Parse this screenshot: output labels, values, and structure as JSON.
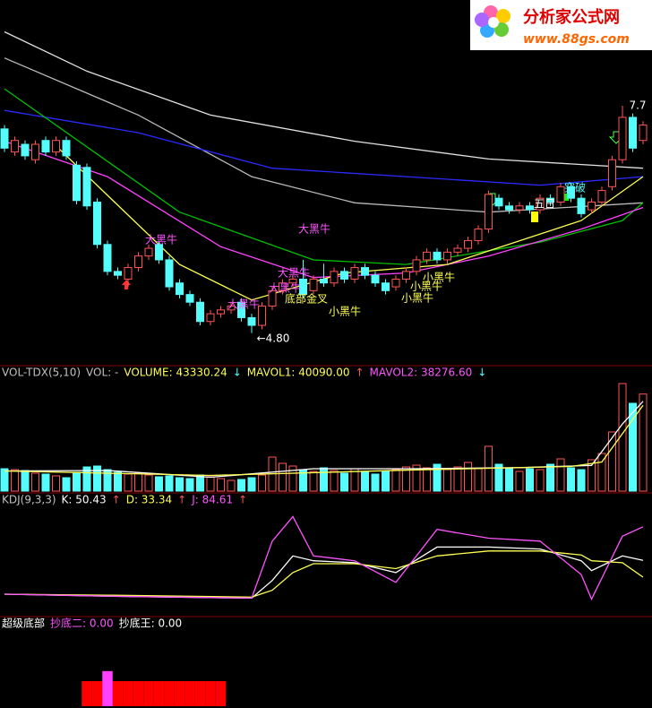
{
  "logo": {
    "name": "分析家公式网",
    "url": "www.88gs.com"
  },
  "chart_data": [
    {
      "type": "candlestick",
      "open": [
        7.45,
        7.15,
        7.25,
        7.05,
        7.3,
        7.15,
        7.3,
        6.98,
        6.95,
        6.5,
        5.95,
        5.6,
        5.5,
        5.65,
        5.8,
        5.95,
        5.75,
        5.45,
        5.3,
        5.2,
        4.95,
        5.05,
        5.1,
        5.2,
        5.0,
        4.9,
        5.15,
        5.35,
        5.45,
        5.5,
        5.35,
        5.5,
        5.45,
        5.6,
        5.5,
        5.65,
        5.55,
        5.45,
        5.4,
        5.5,
        5.6,
        5.75,
        5.85,
        5.75,
        5.85,
        5.9,
        6.0,
        6.15,
        6.55,
        6.45,
        6.4,
        6.45,
        6.4,
        6.55,
        6.5,
        6.7,
        6.55,
        6.4,
        6.5,
        6.7,
        7.05,
        7.6,
        7.3
      ],
      "high": [
        7.5,
        7.35,
        7.3,
        7.3,
        7.35,
        7.35,
        7.35,
        7.03,
        7.0,
        6.55,
        6.0,
        5.65,
        5.7,
        5.85,
        5.95,
        6.0,
        5.8,
        5.5,
        5.35,
        5.25,
        5.1,
        5.15,
        5.2,
        5.25,
        5.05,
        5.2,
        5.4,
        5.5,
        5.55,
        5.75,
        5.55,
        5.7,
        5.65,
        5.65,
        5.7,
        5.7,
        5.6,
        5.5,
        5.55,
        5.65,
        5.8,
        5.9,
        5.9,
        5.9,
        5.95,
        6.05,
        6.2,
        6.65,
        6.6,
        6.5,
        6.5,
        6.5,
        6.6,
        6.6,
        6.75,
        6.75,
        6.6,
        6.55,
        6.7,
        7.1,
        7.75,
        7.65,
        7.55
      ],
      "low": [
        7.15,
        7.1,
        7.05,
        7.0,
        7.1,
        7.1,
        7.05,
        6.47,
        6.4,
        5.9,
        5.55,
        5.5,
        5.4,
        5.6,
        5.75,
        5.7,
        5.35,
        5.25,
        5.15,
        4.9,
        4.9,
        5.0,
        5.05,
        4.95,
        4.8,
        4.85,
        5.1,
        5.3,
        5.4,
        5.25,
        5.3,
        5.4,
        5.4,
        5.45,
        5.45,
        5.5,
        5.4,
        5.3,
        5.35,
        5.45,
        5.55,
        5.7,
        5.7,
        5.7,
        5.8,
        5.85,
        5.95,
        6.1,
        6.4,
        6.35,
        6.35,
        6.35,
        6.35,
        6.45,
        6.45,
        6.5,
        6.3,
        6.35,
        6.45,
        6.65,
        7.0,
        7.15,
        7.25
      ],
      "close": [
        7.2,
        7.3,
        7.1,
        7.25,
        7.15,
        7.3,
        7.1,
        6.52,
        6.45,
        5.95,
        5.6,
        5.55,
        5.65,
        5.8,
        5.9,
        5.75,
        5.4,
        5.3,
        5.2,
        4.95,
        5.05,
        5.1,
        5.15,
        5.0,
        4.9,
        5.15,
        5.35,
        5.45,
        5.5,
        5.3,
        5.5,
        5.45,
        5.6,
        5.5,
        5.65,
        5.55,
        5.45,
        5.35,
        5.5,
        5.6,
        5.75,
        5.85,
        5.75,
        5.85,
        5.9,
        6.0,
        6.15,
        6.6,
        6.45,
        6.4,
        6.45,
        6.4,
        6.55,
        6.5,
        6.7,
        6.55,
        6.35,
        6.5,
        6.65,
        7.05,
        7.6,
        7.2,
        7.5
      ],
      "ylim": [
        4.4,
        9.1
      ],
      "up_color": "#ff5454",
      "down_color": "#54fcfc",
      "lines": [
        {
          "color": "#e0e0e0",
          "x": [
            0,
            8,
            20,
            34,
            47,
            62
          ],
          "values": [
            8.71,
            8.2,
            7.63,
            7.29,
            7.06,
            6.94
          ]
        },
        {
          "color": "#b8b8b8",
          "x": [
            0,
            13,
            24,
            34,
            47,
            62
          ],
          "values": [
            8.37,
            7.63,
            6.83,
            6.49,
            6.37,
            6.49
          ]
        },
        {
          "color": "#2a2aff",
          "x": [
            0,
            13,
            26,
            39,
            52,
            62
          ],
          "values": [
            7.69,
            7.4,
            6.94,
            6.83,
            6.72,
            6.83
          ]
        },
        {
          "color": "#00c000",
          "x": [
            0,
            17,
            30,
            39,
            52,
            60,
            62
          ],
          "values": [
            7.97,
            6.37,
            5.75,
            5.69,
            5.98,
            6.26,
            6.49
          ]
        },
        {
          "color": "#ff40ff",
          "x": [
            0,
            10,
            21,
            30,
            39,
            47,
            56,
            62
          ],
          "values": [
            7.29,
            6.83,
            5.92,
            5.52,
            5.58,
            5.8,
            6.15,
            6.43
          ]
        },
        {
          "color": "#ffff54",
          "x": [
            5,
            17,
            24,
            33,
            43,
            56,
            62
          ],
          "values": [
            7.23,
            5.69,
            5.23,
            5.58,
            5.69,
            6.26,
            6.83
          ]
        }
      ],
      "annotations": [
        {
          "text": "大黑牛",
          "color": "#ff54ff"
        },
        {
          "text": "大黑牛",
          "color": "#ff54ff"
        },
        {
          "text": "大黑牛",
          "color": "#ff54ff"
        },
        {
          "text": "大黑牛",
          "color": "#ff54ff"
        },
        {
          "text": "大黑牛",
          "color": "#ff54ff"
        },
        {
          "text": "底部金叉",
          "color": "#ffff54"
        },
        {
          "text": "小黑牛",
          "color": "#ffff54"
        },
        {
          "text": "小黑牛",
          "color": "#ffff54"
        },
        {
          "text": "小黑牛",
          "color": "#ffff54"
        },
        {
          "text": "小黑牛",
          "color": "#ffff54"
        },
        {
          "text": "五日",
          "color": "#ffffff"
        },
        {
          "text": "突破",
          "color": "#54fcfc"
        },
        {
          "text": "←4.80",
          "color": "#ffffff"
        },
        {
          "text": "7.7",
          "color": "#ffffff"
        }
      ]
    },
    {
      "type": "bar",
      "header": [
        {
          "text": "VOL-TDX(5,10)",
          "color": "#c0c0c0"
        },
        {
          "text": "VOL: -",
          "color": "#c0c0c0"
        },
        {
          "text": "VOLUME: 43330.24",
          "color": "#ffff54"
        },
        {
          "text": "↓",
          "color": "#54fcfc"
        },
        {
          "text": "MAVOL1: 40090.00",
          "color": "#ffff54"
        },
        {
          "text": "↑",
          "color": "#ff5454"
        },
        {
          "text": "MAVOL2: 38276.60",
          "color": "#ff54ff"
        },
        {
          "text": "↓",
          "color": "#54fcfc"
        }
      ],
      "values": [
        10000,
        9600,
        9200,
        8000,
        7600,
        6800,
        6000,
        8400,
        10800,
        11200,
        9600,
        8400,
        7600,
        8000,
        7200,
        6400,
        6800,
        6000,
        5600,
        7200,
        6400,
        5600,
        4800,
        5200,
        6000,
        7200,
        15200,
        12400,
        11200,
        9600,
        8800,
        10400,
        9200,
        8000,
        10000,
        8400,
        7600,
        8800,
        9600,
        10800,
        11600,
        10400,
        12000,
        9600,
        10800,
        12800,
        10000,
        20000,
        12000,
        10400,
        8800,
        10000,
        9600,
        12000,
        14400,
        10400,
        9600,
        14000,
        16800,
        26400,
        48000,
        39200,
        43330.24
      ],
      "ylim": [
        0,
        52000
      ],
      "lines": [
        {
          "color": "#ffffff",
          "x": [
            0,
            10,
            20,
            30,
            40,
            50,
            57,
            60,
            62
          ],
          "values": [
            9000,
            9200,
            6200,
            10000,
            10000,
            10500,
            11500,
            30000,
            40090
          ]
        },
        {
          "color": "#ffff54",
          "x": [
            0,
            20,
            40,
            55,
            58,
            62
          ],
          "values": [
            9000,
            7000,
            9500,
            11000,
            13000,
            38276.6
          ]
        }
      ]
    },
    {
      "type": "line",
      "header": [
        {
          "text": "KDJ(9,3,3)",
          "color": "#c0c0c0"
        },
        {
          "text": "K: 50.43",
          "color": "#ffffff"
        },
        {
          "text": "↑",
          "color": "#ff5454"
        },
        {
          "text": "D: 33.34",
          "color": "#ffff54"
        },
        {
          "text": "↑",
          "color": "#ff5454"
        },
        {
          "text": "J: 84.61",
          "color": "#ff54ff"
        },
        {
          "text": "↑",
          "color": "#ff5454"
        }
      ],
      "ylim": [
        -5,
        110
      ],
      "series": [
        {
          "color": "#ffffff",
          "x": [
            0,
            10,
            24,
            26,
            28,
            30,
            34,
            38,
            42,
            47,
            52,
            56,
            57,
            60,
            62
          ],
          "values": [
            16,
            14,
            12,
            30,
            55,
            50,
            48,
            38,
            64,
            64,
            62,
            50,
            40,
            55,
            50.43
          ]
        },
        {
          "color": "#ffff54",
          "x": [
            0,
            10,
            24,
            26,
            28,
            30,
            34,
            38,
            42,
            47,
            52,
            56,
            57,
            60,
            62
          ],
          "values": [
            16,
            15,
            13,
            20,
            38,
            47,
            47,
            42,
            55,
            60,
            60,
            56,
            50,
            48,
            33.34
          ]
        },
        {
          "color": "#ff54ff",
          "x": [
            0,
            10,
            24,
            26,
            28,
            30,
            34,
            38,
            42,
            47,
            52,
            56,
            57,
            60,
            62
          ],
          "values": [
            16,
            14,
            12,
            70,
            95,
            55,
            50,
            28,
            82,
            73,
            70,
            36,
            11,
            75,
            84.61
          ]
        }
      ]
    },
    {
      "type": "bar",
      "header": [
        {
          "text": "超级底部",
          "color": "#ffffff"
        },
        {
          "text": "抄底二: 0.00",
          "color": "#ff54ff"
        },
        {
          "text": "抄底王: 0.00",
          "color": "#ffffff"
        }
      ],
      "ylim": [
        0,
        2
      ],
      "series": [
        {
          "color": "#ff0000",
          "values": [
            0,
            0,
            0,
            0,
            0,
            0,
            0,
            0,
            1,
            1,
            1,
            1,
            1,
            1,
            1,
            1,
            1,
            1,
            1,
            1,
            1,
            1,
            0,
            0,
            0,
            0,
            0,
            0,
            0,
            0,
            0,
            0,
            0,
            0,
            0,
            0,
            0,
            0,
            0,
            0,
            0,
            0,
            0,
            0,
            0,
            0,
            0,
            0,
            0,
            0,
            0,
            0,
            0,
            0,
            0,
            0,
            0,
            0,
            0,
            0,
            0,
            0,
            0
          ]
        },
        {
          "color": "#ff40ff",
          "values": [
            0,
            0,
            0,
            0,
            0,
            0,
            0,
            0,
            0,
            0,
            1.4,
            0,
            0,
            0,
            0,
            0,
            0,
            0,
            0,
            0,
            0,
            0,
            0,
            0,
            0,
            0,
            0,
            0,
            0,
            0,
            0,
            0,
            0,
            0,
            0,
            0,
            0,
            0,
            0,
            0,
            0,
            0,
            0,
            0,
            0,
            0,
            0,
            0,
            0,
            0,
            0,
            0,
            0,
            0,
            0,
            0,
            0,
            0,
            0,
            0,
            0,
            0,
            0
          ]
        }
      ]
    }
  ]
}
